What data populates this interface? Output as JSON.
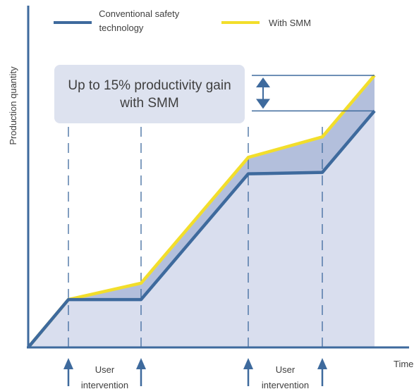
{
  "chart_data": {
    "type": "line",
    "title": "",
    "xlabel": "Time",
    "ylabel": "Production quantity",
    "x": [
      0,
      1,
      2,
      3,
      4,
      5
    ],
    "ylim": [
      0,
      100
    ],
    "grid": false,
    "legend": "top",
    "series": [
      {
        "name": "Conventional safety technology",
        "color": "#3e6a9d",
        "values": [
          0,
          17.5,
          17.5,
          63.5,
          64,
          86.5
        ]
      },
      {
        "name": "With SMM",
        "color": "#f2de2b",
        "values": [
          0,
          17.5,
          23.5,
          69.5,
          77,
          99.5
        ]
      }
    ],
    "interventions": [
      {
        "x": 1,
        "label": "User intervention",
        "line1": "User",
        "line2": "intervention"
      },
      {
        "x": 2
      },
      {
        "x": 3,
        "label": "User intervention",
        "line1": "User",
        "line2": "intervention"
      },
      {
        "x": 4
      }
    ],
    "legend_lines": {
      "conventional": [
        "Conventional safety",
        "technology"
      ],
      "smm": [
        "With SMM"
      ]
    },
    "annotation": {
      "line1": "Up to 15% productivity gain",
      "line2": "with SMM"
    },
    "colors": {
      "axis": "#3e6a9d",
      "fill": "#d9deee",
      "gain_fill": "#b3bfdc",
      "dashed": "#3e6a9d",
      "text": "#3f3f3f"
    }
  }
}
